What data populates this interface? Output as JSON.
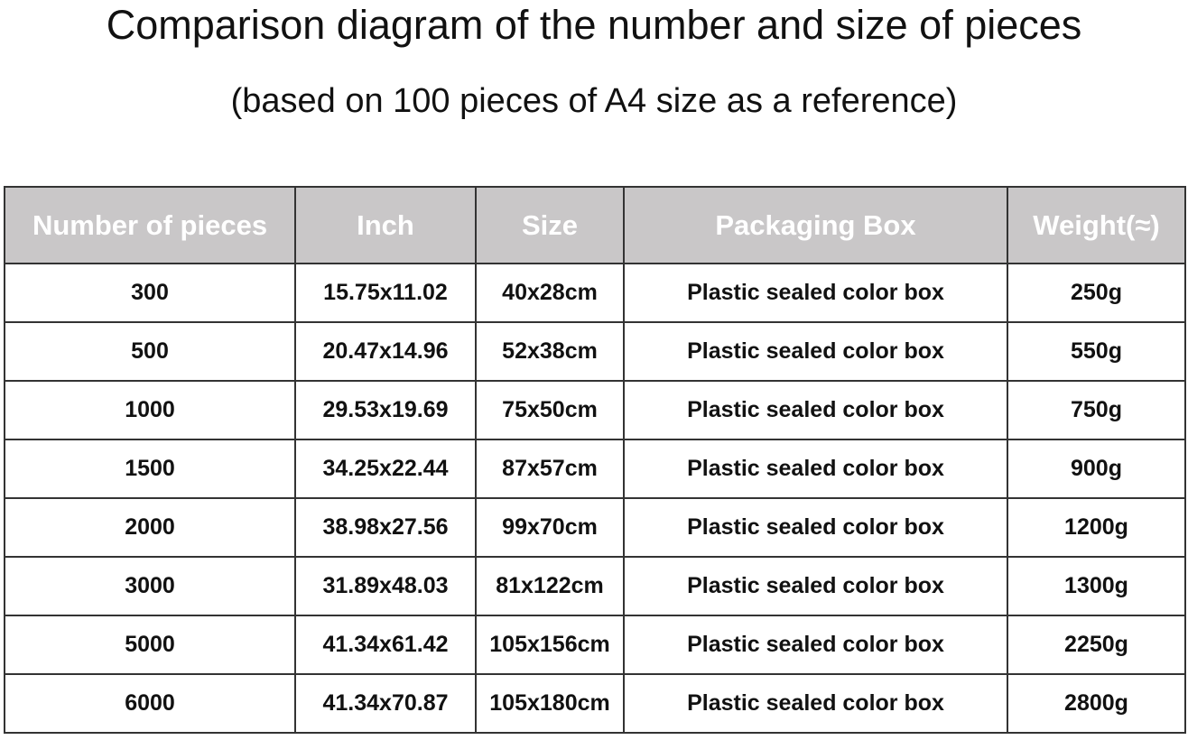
{
  "title": "Comparison diagram of the number and size of pieces",
  "subtitle": "(based on 100 pieces of A4 size as a reference)",
  "table": {
    "headers": [
      "Number of pieces",
      "Inch",
      "Size",
      "Packaging Box",
      "Weight(≈)"
    ],
    "rows": [
      [
        "300",
        "15.75x11.02",
        "40x28cm",
        "Plastic sealed color box",
        "250g"
      ],
      [
        "500",
        "20.47x14.96",
        "52x38cm",
        "Plastic sealed color box",
        "550g"
      ],
      [
        "1000",
        "29.53x19.69",
        "75x50cm",
        "Plastic sealed color box",
        "750g"
      ],
      [
        "1500",
        "34.25x22.44",
        "87x57cm",
        "Plastic sealed color box",
        "900g"
      ],
      [
        "2000",
        "38.98x27.56",
        "99x70cm",
        "Plastic sealed color box",
        "1200g"
      ],
      [
        "3000",
        "31.89x48.03",
        "81x122cm",
        "Plastic sealed color box",
        "1300g"
      ],
      [
        "5000",
        "41.34x61.42",
        "105x156cm",
        "Plastic sealed color box",
        "2250g"
      ],
      [
        "6000",
        "41.34x70.87",
        "105x180cm",
        "Plastic sealed color box",
        "2800g"
      ]
    ]
  },
  "colors": {
    "header_bg": "#c9c7c8",
    "header_text": "#ffffff",
    "border": "#333333"
  }
}
